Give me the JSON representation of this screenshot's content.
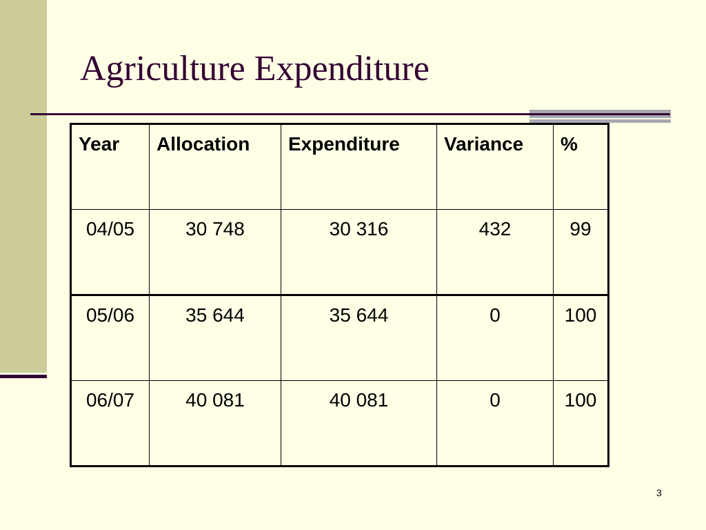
{
  "slide": {
    "title": "Agriculture Expenditure",
    "page_number": "3"
  },
  "table": {
    "headers": [
      "Year",
      "Allocation",
      "Expenditure",
      "Variance",
      "%"
    ],
    "rows": [
      [
        "04/05",
        "30 748",
        "30 316",
        "432",
        "99"
      ],
      [
        "05/06",
        "35 644",
        "35 644",
        "0",
        "100"
      ],
      [
        "06/07",
        "40 081",
        "40 081",
        "0",
        "100"
      ]
    ]
  },
  "colors": {
    "background": "#ffffe6",
    "band": "#cccc99",
    "accent": "#330033",
    "rule_shadow": "#a8a8b0"
  }
}
